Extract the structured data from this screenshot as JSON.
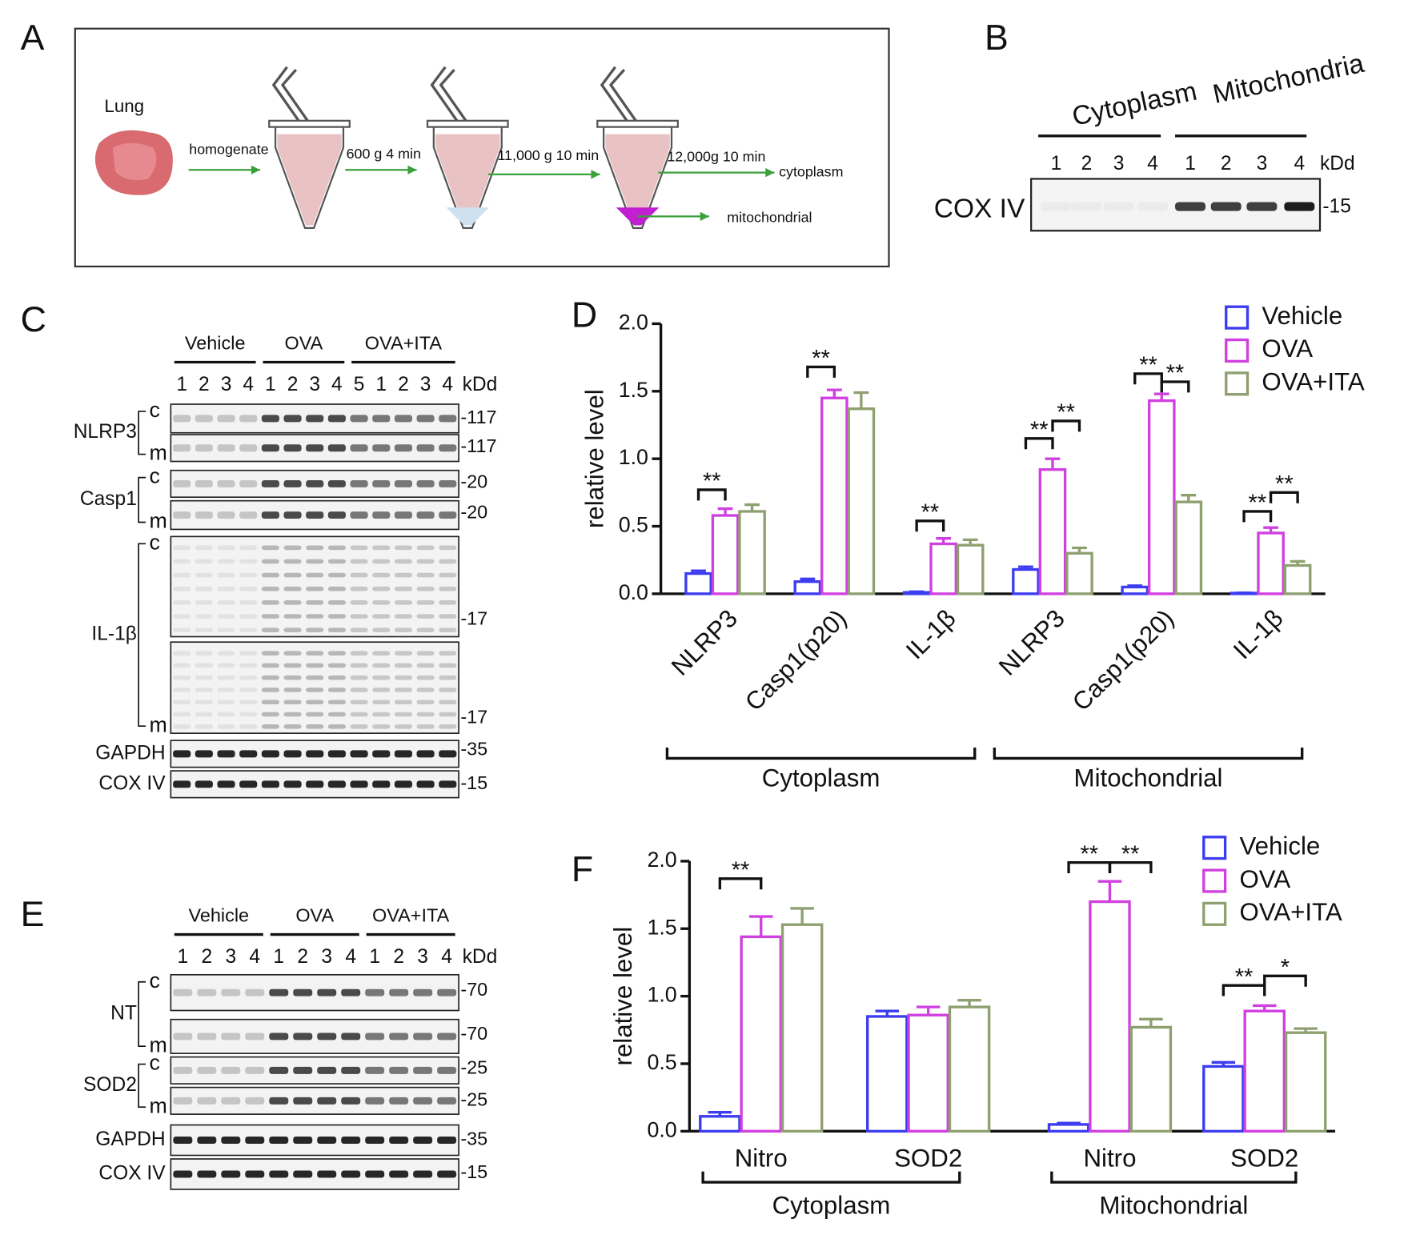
{
  "panel_labels": [
    "A",
    "B",
    "C",
    "D",
    "E",
    "F"
  ],
  "panel_a": {
    "tissue": "Lung",
    "steps": [
      "homogenate",
      "600 g  4 min",
      "11,000 g  10 min",
      "12,000g  10 min"
    ],
    "outputs": [
      "cytoplasm",
      "mitochondrial"
    ]
  },
  "panel_b": {
    "groups": [
      "Cytoplasm",
      "Mitochondria"
    ],
    "lanes": [
      "1",
      "2",
      "3",
      "4",
      "1",
      "2",
      "3",
      "4"
    ],
    "unit": "kDd",
    "protein": "COX IV",
    "marker": "-15"
  },
  "panel_c": {
    "groups": [
      "Vehicle",
      "OVA",
      "OVA+ITA"
    ],
    "lanes": [
      "1",
      "2",
      "3",
      "4",
      "1",
      "2",
      "3",
      "4",
      "5",
      "1",
      "2",
      "3",
      "4"
    ],
    "unit": "kDd",
    "rows": [
      {
        "protein": "NLRP3",
        "blots": [
          {
            "fraction": "c",
            "marker": "-117"
          },
          {
            "fraction": "m",
            "marker": "-117"
          }
        ]
      },
      {
        "protein": "Casp1",
        "blots": [
          {
            "fraction": "c",
            "marker": "-20"
          },
          {
            "fraction": "m",
            "marker": "-20"
          }
        ]
      },
      {
        "protein": "IL-1β",
        "blots": [
          {
            "fraction": "c",
            "marker": "-17"
          },
          {
            "fraction": "m",
            "marker": "-17"
          }
        ]
      },
      {
        "protein": "GAPDH",
        "blots": [
          {
            "marker": "-35"
          }
        ]
      },
      {
        "protein": "COX IV",
        "blots": [
          {
            "marker": "-15"
          }
        ]
      }
    ]
  },
  "panel_e": {
    "groups": [
      "Vehicle",
      "OVA",
      "OVA+ITA"
    ],
    "lanes": [
      "1",
      "2",
      "3",
      "4",
      "1",
      "2",
      "3",
      "4",
      "1",
      "2",
      "3",
      "4"
    ],
    "unit": "kDd",
    "rows": [
      {
        "protein": "NT",
        "blots": [
          {
            "fraction": "c",
            "marker": "-70"
          },
          {
            "fraction": "m",
            "marker": "-70"
          }
        ]
      },
      {
        "protein": "SOD2",
        "blots": [
          {
            "fraction": "c",
            "marker": "-25"
          },
          {
            "fraction": "m",
            "marker": "-25"
          }
        ]
      },
      {
        "protein": "GAPDH",
        "blots": [
          {
            "marker": "-35"
          }
        ]
      },
      {
        "protein": "COX IV",
        "blots": [
          {
            "marker": "-15"
          }
        ]
      }
    ]
  },
  "chart_data": [
    {
      "type": "bar",
      "ylabel": "relative level",
      "categories": [
        "NLRP3",
        "Casp1(p20)",
        "IL-1β",
        "NLRP3",
        "Casp1(p20)",
        "IL-1β"
      ],
      "groups": [
        "Cytoplasm",
        "Mitochondrial"
      ],
      "series": [
        {
          "name": "Vehicle",
          "color": "#3c3cf0",
          "values": [
            0.15,
            0.09,
            0.01,
            0.18,
            0.05,
            0.005
          ],
          "errors": [
            0.02,
            0.02,
            0.005,
            0.02,
            0.01,
            0.002
          ]
        },
        {
          "name": "OVA",
          "color": "#d040e0",
          "values": [
            0.58,
            1.45,
            0.37,
            0.92,
            1.43,
            0.45
          ],
          "errors": [
            0.05,
            0.06,
            0.04,
            0.08,
            0.05,
            0.04
          ]
        },
        {
          "name": "OVA+ITA",
          "color": "#8fa070",
          "values": [
            0.61,
            1.37,
            0.36,
            0.3,
            0.68,
            0.21
          ],
          "errors": [
            0.05,
            0.12,
            0.04,
            0.04,
            0.05,
            0.03
          ]
        }
      ],
      "ylim": [
        0,
        2
      ],
      "yticks": [
        {
          "value": 0,
          "label": "0.0"
        },
        0.5,
        {
          "value": 1,
          "label": "1.0"
        },
        1.5,
        {
          "value": 2,
          "label": "2.0"
        }
      ],
      "annotations": [
        "**",
        "**",
        "**",
        "**",
        "**",
        "**",
        "**",
        "**",
        "**"
      ],
      "legend": "upper right"
    },
    {
      "type": "bar",
      "ylabel": "relative level",
      "categories": [
        "Nitro",
        "SOD2",
        "Nitro",
        "SOD2"
      ],
      "groups": [
        "Cytoplasm",
        "Mitochondrial"
      ],
      "series": [
        {
          "name": "Vehicle",
          "color": "#3c3cf0",
          "values": [
            0.11,
            0.85,
            0.05,
            0.48
          ],
          "errors": [
            0.03,
            0.04,
            0.01,
            0.03
          ]
        },
        {
          "name": "OVA",
          "color": "#d040e0",
          "values": [
            1.44,
            0.86,
            1.7,
            0.89
          ],
          "errors": [
            0.15,
            0.06,
            0.15,
            0.04
          ]
        },
        {
          "name": "OVA+ITA",
          "color": "#8fa070",
          "values": [
            1.53,
            0.92,
            0.77,
            0.73
          ],
          "errors": [
            0.12,
            0.05,
            0.06,
            0.03
          ]
        }
      ],
      "ylim": [
        0,
        2
      ],
      "yticks": [
        {
          "value": 0,
          "label": "0.0"
        },
        0.5,
        {
          "value": 1,
          "label": "1.0"
        },
        1.5,
        {
          "value": 2,
          "label": "2.0"
        }
      ],
      "annotations": [
        "**",
        "**",
        "**",
        "**",
        "*"
      ],
      "legend": "upper right"
    }
  ]
}
